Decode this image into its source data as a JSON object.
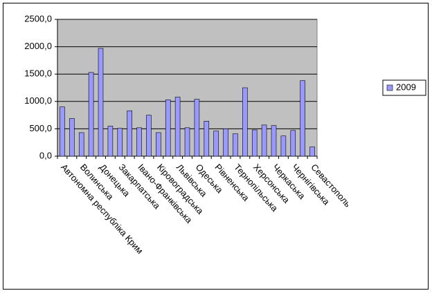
{
  "chart_data": {
    "type": "bar",
    "categories": [
      "Автономна республіка Крим",
      null,
      "Волинська",
      null,
      "Донецька",
      null,
      "Закарпатська",
      null,
      "Івано-Франківська",
      null,
      "Кіровоградська",
      null,
      "Львівська",
      null,
      "Одеська",
      null,
      "Рівненська",
      null,
      "Тернопільська",
      null,
      "Херсонська",
      null,
      "Черкаська",
      null,
      "Чернігівська",
      null,
      "Севастополь"
    ],
    "series": [
      {
        "name": "2009",
        "color": "#9999ff",
        "values": [
          900,
          690,
          430,
          1530,
          1970,
          550,
          510,
          830,
          520,
          750,
          430,
          1030,
          1080,
          520,
          1040,
          640,
          460,
          500,
          410,
          1250,
          480,
          570,
          560,
          370,
          470,
          1380,
          170
        ]
      }
    ],
    "ylim": [
      0,
      2500
    ],
    "yticks": [
      {
        "value": 0,
        "label": "0,0"
      },
      {
        "value": 500,
        "label": "500,0"
      },
      {
        "value": 1000,
        "label": "1000,0"
      },
      {
        "value": 1500,
        "label": "1500,0"
      },
      {
        "value": 2000,
        "label": "2000,0"
      },
      {
        "value": 2500,
        "label": "2500,0"
      }
    ],
    "grid": true,
    "legend": "right",
    "plot_background": "#c0c0c0"
  }
}
